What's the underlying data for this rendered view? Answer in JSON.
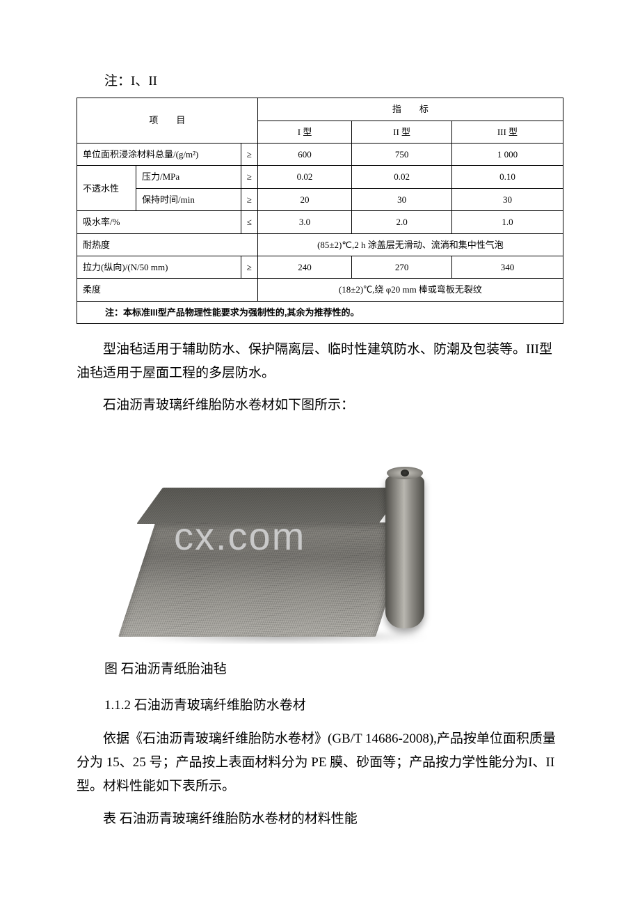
{
  "top_note": "注：I、II",
  "table1": {
    "header": {
      "item": "项　　目",
      "indicator": "指　　标",
      "col1": "I 型",
      "col2": "II 型",
      "col3": "III 型"
    },
    "rows": {
      "r1": {
        "label": "单位面积浸涂材料总量/(g/m²)",
        "sym": "≥",
        "v1": "600",
        "v2": "750",
        "v3": "1 000"
      },
      "r2_group": "不透水性",
      "r2a": {
        "label": "压力/MPa",
        "sym": "≥",
        "v1": "0.02",
        "v2": "0.02",
        "v3": "0.10"
      },
      "r2b": {
        "label": "保持时间/min",
        "sym": "≥",
        "v1": "20",
        "v2": "30",
        "v3": "30"
      },
      "r3": {
        "label": "吸水率/%",
        "sym": "≤",
        "v1": "3.0",
        "v2": "2.0",
        "v3": "1.0"
      },
      "r4": {
        "label": "耐热度",
        "merged": "(85±2)℃,2 h 涂盖层无滑动、流淌和集中性气泡"
      },
      "r5": {
        "label": "拉力(纵向)/(N/50 mm)",
        "sym": "≥",
        "v1": "240",
        "v2": "270",
        "v3": "340"
      },
      "r6": {
        "label": "柔度",
        "merged": "(18±2)℃,绕 φ20 mm 棒或弯板无裂纹"
      }
    },
    "footnote": "注：本标准III型产品物理性能要求为强制性的,其余为推荐性的。"
  },
  "para1_a": "型油毡适用于辅助防水、保护隔离层、临时性建筑防水、防潮及包装等。III型油毡适用于屋面工程的多层防水。",
  "para2": "石油沥青玻璃纤维胎防水卷材如下图所示：",
  "watermark": "cx.com",
  "caption": "图 石油沥青纸胎油毡",
  "section_num": "1.1.2 石油沥青玻璃纤维胎防水卷材",
  "para3": "依据《石油沥青玻璃纤维胎防水卷材》(GB/T 14686-2008),产品按单位面积质量分为 15、25 号；产品按上表面材料分为 PE 膜、砂面等；产品按力学性能分为I、II型。材料性能如下表所示。",
  "table2_title": "表 石油沥青玻璃纤维胎防水卷材的材料性能"
}
